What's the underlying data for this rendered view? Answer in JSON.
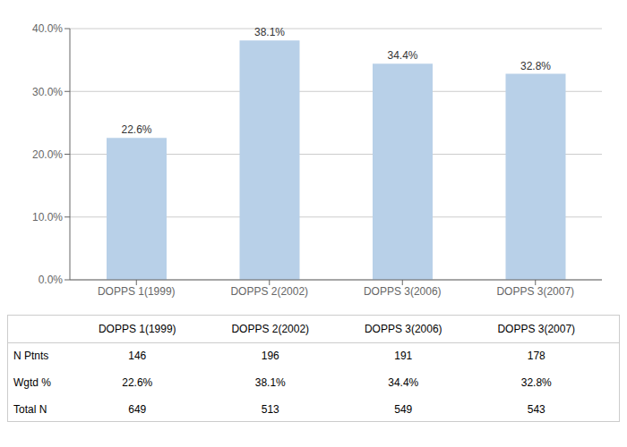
{
  "chart_data": {
    "type": "bar",
    "categories": [
      "DOPPS 1(1999)",
      "DOPPS 2(2002)",
      "DOPPS 3(2006)",
      "DOPPS 3(2007)"
    ],
    "values": [
      22.6,
      38.1,
      34.4,
      32.8
    ],
    "value_labels": [
      "22.6%",
      "38.1%",
      "34.4%",
      "32.8%"
    ],
    "data_labels": true,
    "color": "#b8d0e8",
    "ylim": [
      0,
      40.0
    ],
    "yticks": [
      {
        "value": 0.0,
        "label": "0.0%"
      },
      {
        "value": 10.0,
        "label": "10.0%"
      },
      {
        "value": 20.0,
        "label": "20.0%"
      },
      {
        "value": 30.0,
        "label": "30.0%"
      },
      {
        "value": 40.0,
        "label": "40.0%"
      }
    ],
    "grid": true,
    "table": {
      "rows": [
        "N Ptnts",
        "Wgtd %",
        "Total N"
      ],
      "data": [
        [
          "146",
          "196",
          "191",
          "178"
        ],
        [
          "22.6%",
          "38.1%",
          "34.4%",
          "32.8%"
        ],
        [
          "649",
          "513",
          "549",
          "543"
        ]
      ]
    }
  }
}
